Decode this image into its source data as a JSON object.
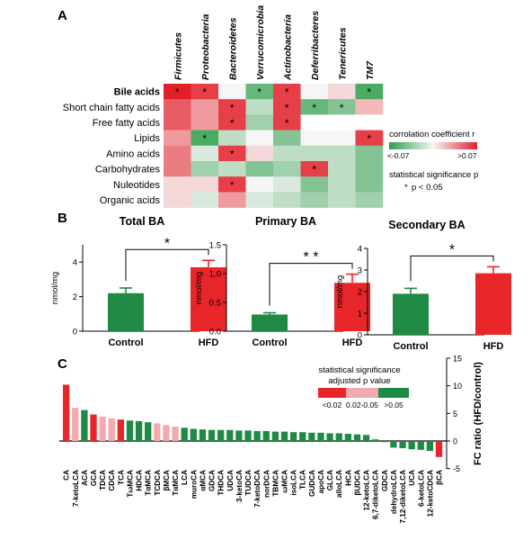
{
  "panels": {
    "a": "A",
    "b": "B",
    "c": "C"
  },
  "palette": {
    "green": "#1e8a44",
    "red": "#e8262a",
    "pink": "#f2aab0",
    "corr_neg": "#2e9e4a",
    "corr_mid": "#f6f6f6",
    "corr_pos": "#e3202a"
  },
  "chart_data": [
    {
      "type": "heatmap",
      "panel": "A",
      "columns": [
        "Firmicutes",
        "Proteobacteria",
        "Bacteroidetes",
        "Verrucomicrobia",
        "Actinobacteria",
        "Deferribacteres",
        "Tenericutes",
        "TM7"
      ],
      "rows": [
        "Bile acids",
        "Short chain fatty acids",
        "Free fatty acids",
        "Lipids",
        "Amino acids",
        "Carbohydrates",
        "Nuleotides",
        "Organic acids"
      ],
      "bold_rows": [
        "Bile acids"
      ],
      "values": [
        [
          0.07,
          0.06,
          0.0,
          -0.05,
          0.06,
          0.0,
          0.01,
          -0.06
        ],
        [
          0.05,
          0.03,
          0.06,
          -0.02,
          0.06,
          -0.05,
          -0.04,
          0.02
        ],
        [
          0.05,
          0.03,
          0.06,
          -0.03,
          0.06,
          null,
          null,
          null
        ],
        [
          0.03,
          -0.06,
          -0.02,
          0.0,
          -0.04,
          0.0,
          0.0,
          0.06
        ],
        [
          0.04,
          -0.01,
          0.06,
          0.01,
          -0.02,
          -0.02,
          -0.02,
          -0.04
        ],
        [
          0.04,
          -0.03,
          -0.02,
          -0.04,
          -0.03,
          0.06,
          -0.02,
          -0.04
        ],
        [
          0.01,
          0.01,
          0.06,
          0.0,
          -0.01,
          -0.04,
          -0.02,
          -0.04
        ],
        [
          0.01,
          -0.01,
          0.03,
          -0.01,
          -0.02,
          -0.03,
          -0.02,
          -0.03
        ]
      ],
      "significant": [
        [
          0,
          0
        ],
        [
          0,
          1
        ],
        [
          0,
          3
        ],
        [
          0,
          4
        ],
        [
          0,
          7
        ],
        [
          1,
          2
        ],
        [
          1,
          4
        ],
        [
          1,
          5
        ],
        [
          1,
          6
        ],
        [
          2,
          2
        ],
        [
          2,
          4
        ],
        [
          3,
          1
        ],
        [
          3,
          7
        ],
        [
          4,
          2
        ],
        [
          5,
          5
        ],
        [
          6,
          2
        ]
      ],
      "colorbar": {
        "title": "corrolation coefficient r",
        "min_label": "<-0.07",
        "max_label": ">0.07",
        "min": -0.07,
        "max": 0.07
      },
      "legend_sig": {
        "title": "statistical significance p",
        "marker": "*",
        "note": "p < 0.05"
      }
    },
    {
      "type": "bar",
      "panel": "B",
      "title": "Total BA",
      "ylabel": "nmol/mg",
      "categories": [
        "Control",
        "HFD"
      ],
      "values": [
        2.2,
        3.7
      ],
      "errors": [
        0.3,
        0.4
      ],
      "ylim": [
        0,
        5
      ],
      "yticks": [
        0,
        2,
        4
      ],
      "yticklabels": [
        "0",
        "2",
        "4"
      ],
      "significance": "*"
    },
    {
      "type": "bar",
      "panel": "B",
      "title": "Primary BA",
      "ylabel": "nmol/mg",
      "categories": [
        "Control",
        "HFD"
      ],
      "values": [
        0.29,
        0.84
      ],
      "errors": [
        0.03,
        0.15
      ],
      "ylim": [
        0,
        1.5
      ],
      "yticks": [
        0,
        0.5,
        1.0,
        1.5
      ],
      "yticklabels": [
        "0.0",
        "0.5",
        "1.0",
        "1.5"
      ],
      "significance": "* *"
    },
    {
      "type": "bar",
      "panel": "B",
      "title": "Secondary BA",
      "ylabel": "nmol/mg",
      "categories": [
        "Control",
        "HFD"
      ],
      "values": [
        1.9,
        2.85
      ],
      "errors": [
        0.25,
        0.3
      ],
      "ylim": [
        0,
        4
      ],
      "yticks": [
        0,
        1,
        2,
        3,
        4
      ],
      "yticklabels": [
        "0",
        "1",
        "2",
        "3",
        "4"
      ],
      "significance": "*"
    },
    {
      "type": "bar",
      "panel": "C",
      "ylabel": "FC ratio (HFD/control)",
      "ylim": [
        -5,
        15
      ],
      "yticks": [
        -5,
        0,
        5,
        10,
        15
      ],
      "yticklabels": [
        "-5",
        "0",
        "5",
        "10",
        "15"
      ],
      "legend": {
        "title_line1": "statistical significance",
        "title_line2": "adjusted p value",
        "entries": [
          {
            "label": "<0.02",
            "group": "red"
          },
          {
            "label": "0.02-0.05",
            "group": "pink"
          },
          {
            "label": ">0.05",
            "group": "green"
          }
        ]
      },
      "categories": [
        "CA",
        "7-ketoLCA",
        "ACA",
        "GCA",
        "TDCA",
        "CDCA",
        "TCA",
        "TωMCA",
        "HDCA",
        "TαMCA",
        "TCDCA",
        "βMCA",
        "TαMCA",
        "LCA",
        "muroCA",
        "αMCA",
        "GDCA",
        "THDCA",
        "UDCA",
        "3-ketoCA",
        "TUDCA",
        "7-ketoDCA",
        "norDCA",
        "TBMCA",
        "ωMCA",
        "isoLCA",
        "TLCA",
        "GUDCA",
        "apoCA",
        "GLCA",
        "alloLCA",
        "HCA",
        "βUDCA",
        "12-ketoLCA",
        "6,7-diketoLCA",
        "GDCA",
        "dehydroLCA",
        "7,12-diketoLCA",
        "UCA",
        "6-ketoLCA",
        "12-ketoCDCA",
        "βCA"
      ],
      "values": [
        10.2,
        6.0,
        5.6,
        4.8,
        4.4,
        4.1,
        3.9,
        3.7,
        3.6,
        3.4,
        3.2,
        2.9,
        2.6,
        2.4,
        2.2,
        2.1,
        2.0,
        2.0,
        2.0,
        1.9,
        1.9,
        1.8,
        1.8,
        1.7,
        1.7,
        1.6,
        1.6,
        1.5,
        1.5,
        1.4,
        1.4,
        1.3,
        1.2,
        1.1,
        0.3,
        -0.2,
        -1.2,
        -1.3,
        -1.5,
        -1.6,
        -1.8,
        -2.9
      ],
      "groups": [
        "red",
        "pink",
        "green",
        "red",
        "pink",
        "pink",
        "red",
        "green",
        "green",
        "green",
        "pink",
        "pink",
        "pink",
        "green",
        "green",
        "green",
        "green",
        "green",
        "green",
        "green",
        "green",
        "green",
        "green",
        "green",
        "green",
        "green",
        "green",
        "green",
        "green",
        "green",
        "green",
        "green",
        "green",
        "green",
        "green",
        "green",
        "green",
        "green",
        "green",
        "green",
        "green",
        "red"
      ]
    }
  ]
}
